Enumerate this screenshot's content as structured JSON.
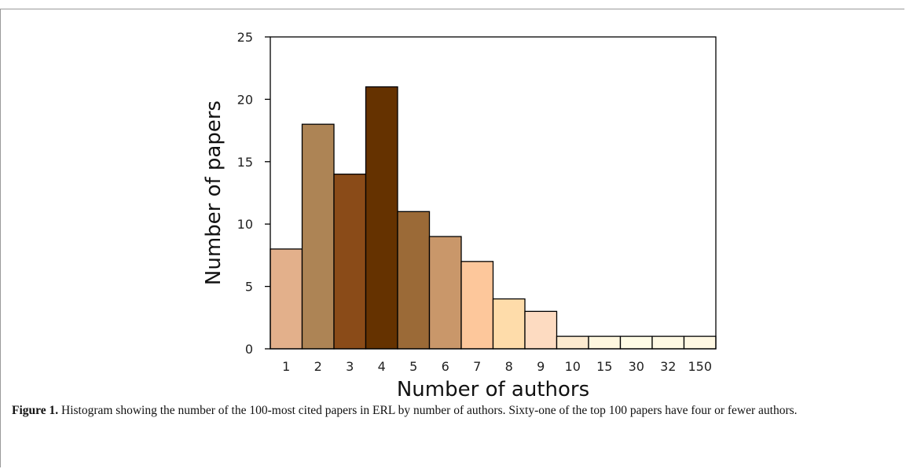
{
  "chart_data": {
    "type": "bar",
    "categories": [
      "1",
      "2",
      "3",
      "4",
      "5",
      "6",
      "7",
      "8",
      "9",
      "10",
      "15",
      "30",
      "32",
      "150"
    ],
    "values": [
      8,
      18,
      14,
      21,
      11,
      9,
      7,
      4,
      3,
      1,
      1,
      1,
      1,
      1
    ],
    "colors": [
      "#e3b08b",
      "#ad8455",
      "#8a4b18",
      "#653200",
      "#9b6a37",
      "#c9976a",
      "#fdc79b",
      "#fedcaa",
      "#fddbc1",
      "#fdebd0",
      "#fef7df",
      "#fffce6",
      "#fef9e4",
      "#fff8e3"
    ],
    "xlabel": "Number of authors",
    "ylabel": "Number of papers",
    "ylim": [
      0,
      25
    ],
    "yticks": [
      0,
      5,
      10,
      15,
      20,
      25
    ]
  },
  "caption": {
    "label": "Figure 1.",
    "text": " Histogram showing the number of the 100-most cited papers in ERL by number of authors. Sixty-one of the top 100 papers have four or fewer authors."
  }
}
